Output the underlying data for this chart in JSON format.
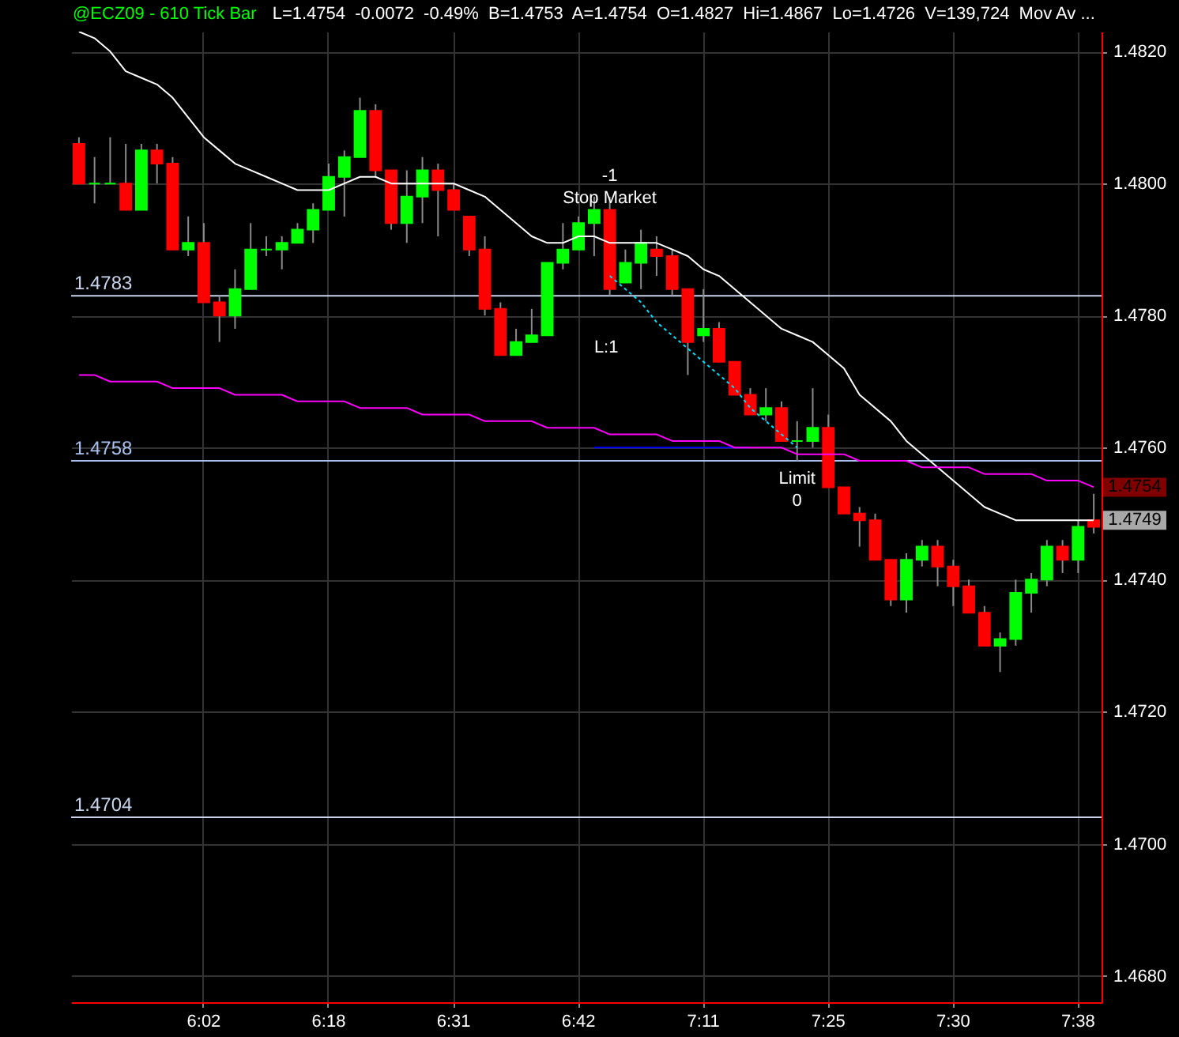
{
  "chart_data": {
    "type": "candlestick",
    "title": "@ECZ09 - 610 Tick Bar",
    "subtitle": "L=1.4754  -0.0072  -0.49%  B=1.4753  A=1.4754  O=1.4827  Hi=1.4867  Lo=1.4726  V=139,724  Mov Av ...",
    "categories": [
      null,
      null,
      null,
      null,
      null,
      null,
      null,
      null,
      "6:02",
      null,
      null,
      null,
      null,
      null,
      null,
      null,
      "6:18",
      null,
      null,
      null,
      null,
      null,
      null,
      null,
      "6:31",
      null,
      null,
      null,
      null,
      null,
      null,
      null,
      "6:42",
      null,
      null,
      null,
      null,
      null,
      null,
      null,
      "7:11",
      null,
      null,
      null,
      null,
      null,
      null,
      null,
      "7:25",
      null,
      null,
      null,
      null,
      null,
      null,
      null,
      "7:30",
      null,
      null,
      null,
      null,
      null,
      null,
      null,
      "7:38",
      null
    ],
    "ohlc": [
      [
        1.4806,
        1.4807,
        1.48,
        1.48
      ],
      [
        1.48,
        1.4804,
        1.4797,
        1.48
      ],
      [
        1.48,
        1.4807,
        1.48,
        1.48
      ],
      [
        1.48,
        1.4806,
        1.4796,
        1.4796
      ],
      [
        1.4796,
        1.4806,
        1.4796,
        1.4805
      ],
      [
        1.4805,
        1.4806,
        1.48,
        1.4803
      ],
      [
        1.4803,
        1.4804,
        1.479,
        1.479
      ],
      [
        1.479,
        1.4795,
        1.4789,
        1.4791
      ],
      [
        1.4791,
        1.4794,
        1.4782,
        1.4782
      ],
      [
        1.4782,
        1.4783,
        1.4776,
        1.478
      ],
      [
        1.478,
        1.4787,
        1.4778,
        1.4784
      ],
      [
        1.4784,
        1.4794,
        1.4784,
        1.479
      ],
      [
        1.479,
        1.4792,
        1.4789,
        1.479
      ],
      [
        1.479,
        1.4792,
        1.4787,
        1.4791
      ],
      [
        1.4791,
        1.4794,
        1.4791,
        1.4793
      ],
      [
        1.4793,
        1.4797,
        1.4791,
        1.4796
      ],
      [
        1.4796,
        1.4803,
        1.4796,
        1.4801
      ],
      [
        1.4801,
        1.4805,
        1.4795,
        1.4804
      ],
      [
        1.4804,
        1.4813,
        1.4804,
        1.4811
      ],
      [
        1.4811,
        1.4812,
        1.4801,
        1.4802
      ],
      [
        1.4802,
        1.4802,
        1.4793,
        1.4794
      ],
      [
        1.4794,
        1.4802,
        1.4791,
        1.4798
      ],
      [
        1.4798,
        1.4804,
        1.4794,
        1.4802
      ],
      [
        1.4802,
        1.4803,
        1.4792,
        1.4799
      ],
      [
        1.4799,
        1.48,
        1.4796,
        1.4796
      ],
      [
        1.4795,
        1.4795,
        1.4789,
        1.479
      ],
      [
        1.479,
        1.4792,
        1.478,
        1.4781
      ],
      [
        1.4781,
        1.4782,
        1.4774,
        1.4774
      ],
      [
        1.4774,
        1.4778,
        1.4774,
        1.4776
      ],
      [
        1.4776,
        1.4781,
        1.4776,
        1.4777
      ],
      [
        1.4777,
        1.4788,
        1.4777,
        1.4788
      ],
      [
        1.4788,
        1.4794,
        1.4787,
        1.479
      ],
      [
        1.479,
        1.4795,
        1.479,
        1.4794
      ],
      [
        1.4794,
        1.4798,
        1.4789,
        1.4796
      ],
      [
        1.4796,
        1.4798,
        1.4783,
        1.4784
      ],
      [
        1.4785,
        1.479,
        1.4785,
        1.4788
      ],
      [
        1.4788,
        1.4793,
        1.4784,
        1.4791
      ],
      [
        1.479,
        1.4792,
        1.4786,
        1.4789
      ],
      [
        1.4789,
        1.479,
        1.4783,
        1.4784
      ],
      [
        1.4784,
        1.4784,
        1.4771,
        1.4776
      ],
      [
        1.4777,
        1.4784,
        1.4776,
        1.4778
      ],
      [
        1.4778,
        1.4779,
        1.4773,
        1.4773
      ],
      [
        1.4773,
        1.4773,
        1.4768,
        1.4768
      ],
      [
        1.4768,
        1.4769,
        1.4765,
        1.4765
      ],
      [
        1.4765,
        1.4769,
        1.4764,
        1.4766
      ],
      [
        1.4766,
        1.4767,
        1.4761,
        1.4761
      ],
      [
        1.4761,
        1.4764,
        1.4758,
        1.4761
      ],
      [
        1.4761,
        1.4769,
        1.476,
        1.4763
      ],
      [
        1.4763,
        1.4765,
        1.4754,
        1.4754
      ],
      [
        1.4754,
        1.4754,
        1.475,
        1.475
      ],
      [
        1.475,
        1.4751,
        1.4745,
        1.4749
      ],
      [
        1.4749,
        1.475,
        1.4743,
        1.4743
      ],
      [
        1.4743,
        1.4743,
        1.4736,
        1.4737
      ],
      [
        1.4737,
        1.4744,
        1.4735,
        1.4743
      ],
      [
        1.4743,
        1.4746,
        1.4742,
        1.4745
      ],
      [
        1.4745,
        1.4746,
        1.4739,
        1.4742
      ],
      [
        1.4742,
        1.4743,
        1.4736,
        1.4739
      ],
      [
        1.4739,
        1.474,
        1.4735,
        1.4735
      ],
      [
        1.4735,
        1.4736,
        1.473,
        1.473
      ],
      [
        1.473,
        1.4732,
        1.4726,
        1.4731
      ],
      [
        1.4731,
        1.474,
        1.473,
        1.4738
      ],
      [
        1.4738,
        1.4741,
        1.4735,
        1.474
      ],
      [
        1.474,
        1.4746,
        1.4739,
        1.4745
      ],
      [
        1.4745,
        1.4746,
        1.4741,
        1.4743
      ],
      [
        1.4743,
        1.4749,
        1.4741,
        1.4748
      ],
      [
        1.4749,
        1.4753,
        1.4747,
        1.4748
      ]
    ],
    "series": [
      {
        "type": "line",
        "color": "#ffffff",
        "values": [
          1.4823,
          1.4822,
          1.482,
          1.4817,
          1.4816,
          1.4815,
          1.4813,
          1.481,
          1.4807,
          1.4805,
          1.4803,
          1.4802,
          1.4801,
          1.48,
          1.4799,
          1.4799,
          1.4799,
          1.48,
          1.4801,
          1.4801,
          1.48,
          1.48,
          1.48,
          1.48,
          1.48,
          1.4799,
          1.4798,
          1.4796,
          1.4794,
          1.4792,
          1.4791,
          1.4791,
          1.4792,
          1.4792,
          1.4791,
          1.4791,
          1.4791,
          1.4791,
          1.479,
          1.4789,
          1.4787,
          1.4786,
          1.4784,
          1.4782,
          1.478,
          1.4778,
          1.4777,
          1.4776,
          1.4774,
          1.4772,
          1.4768,
          1.4766,
          1.4764,
          1.4761,
          1.4759,
          1.4757,
          1.4755,
          1.4753,
          1.4751,
          1.475,
          1.4749,
          1.4749,
          1.4749,
          1.4749,
          1.4749,
          1.4749
        ]
      },
      {
        "type": "line",
        "color": "#ff00ff",
        "values": [
          1.4771,
          1.4771,
          1.477,
          1.477,
          1.477,
          1.477,
          1.4769,
          1.4769,
          1.4769,
          1.4769,
          1.4768,
          1.4768,
          1.4768,
          1.4768,
          1.4767,
          1.4767,
          1.4767,
          1.4767,
          1.4766,
          1.4766,
          1.4766,
          1.4766,
          1.4765,
          1.4765,
          1.4765,
          1.4765,
          1.4764,
          1.4764,
          1.4764,
          1.4764,
          1.4763,
          1.4763,
          1.4763,
          1.4763,
          1.4762,
          1.4762,
          1.4762,
          1.4762,
          1.4761,
          1.4761,
          1.4761,
          1.4761,
          1.476,
          1.476,
          1.476,
          1.476,
          1.4759,
          1.4759,
          1.4759,
          1.4759,
          1.4758,
          1.4758,
          1.4758,
          1.4758,
          1.4757,
          1.4757,
          1.4757,
          1.4757,
          1.4756,
          1.4756,
          1.4756,
          1.4756,
          1.4755,
          1.4755,
          1.4755,
          1.4754
        ]
      },
      {
        "type": "line",
        "color": "#00e0ff",
        "line_style": "dashed",
        "values": [
          null,
          null,
          null,
          null,
          null,
          null,
          null,
          null,
          null,
          null,
          null,
          null,
          null,
          null,
          null,
          null,
          null,
          null,
          null,
          null,
          null,
          null,
          null,
          null,
          null,
          null,
          null,
          null,
          null,
          null,
          null,
          null,
          null,
          null,
          1.4786,
          1.4784,
          1.4782,
          1.4779,
          1.4777,
          1.4775,
          1.4773,
          1.4771,
          1.4769,
          1.4766,
          1.4764,
          1.4762,
          1.476,
          null,
          null,
          null,
          null,
          null,
          null,
          null,
          null,
          null,
          null,
          null,
          null,
          null,
          null,
          null,
          null,
          null,
          null,
          null
        ]
      },
      {
        "type": "line",
        "color": "#0000ff",
        "values": [
          null,
          null,
          null,
          null,
          null,
          null,
          null,
          null,
          null,
          null,
          null,
          null,
          null,
          null,
          null,
          null,
          null,
          null,
          null,
          null,
          null,
          null,
          null,
          null,
          null,
          null,
          null,
          null,
          null,
          null,
          null,
          null,
          null,
          1.476,
          1.476,
          1.476,
          1.476,
          1.476,
          1.476,
          1.476,
          1.476,
          1.476,
          1.476,
          1.476,
          null,
          null,
          null,
          null,
          null,
          null,
          null,
          null,
          null,
          null,
          null,
          null,
          null,
          null,
          null,
          null,
          null,
          null,
          null,
          null,
          null,
          null
        ]
      }
    ],
    "ylim": [
      1.4676,
      1.4823
    ],
    "yticks": [
      {
        "value": 1.468,
        "label": "1.4680"
      },
      {
        "value": 1.47,
        "label": "1.4700"
      },
      {
        "value": 1.472,
        "label": "1.4720"
      },
      {
        "value": 1.474,
        "label": "1.4740"
      },
      {
        "value": 1.476,
        "label": "1.4760"
      },
      {
        "value": 1.478,
        "label": "1.4780"
      },
      {
        "value": 1.48,
        "label": "1.4800"
      },
      {
        "value": 1.482,
        "label": "1.4820"
      }
    ],
    "grid": true,
    "ref_lines": [
      {
        "axis": "y",
        "value": 1.4783,
        "label": "1.4783",
        "color": "#c8d4ec"
      },
      {
        "axis": "y",
        "value": 1.4758,
        "label": "1.4758",
        "color": "#a8c0f0"
      },
      {
        "axis": "y",
        "value": 1.4704,
        "label": "1.4704",
        "color": "#c8d4ec"
      }
    ],
    "annotations": [
      "-1\nStop Market",
      "Limit\n0",
      "L:1",
      {
        "text": "1.4754",
        "y": 1.4754
      },
      {
        "text": "1.4749",
        "y": 1.4749
      }
    ]
  }
}
